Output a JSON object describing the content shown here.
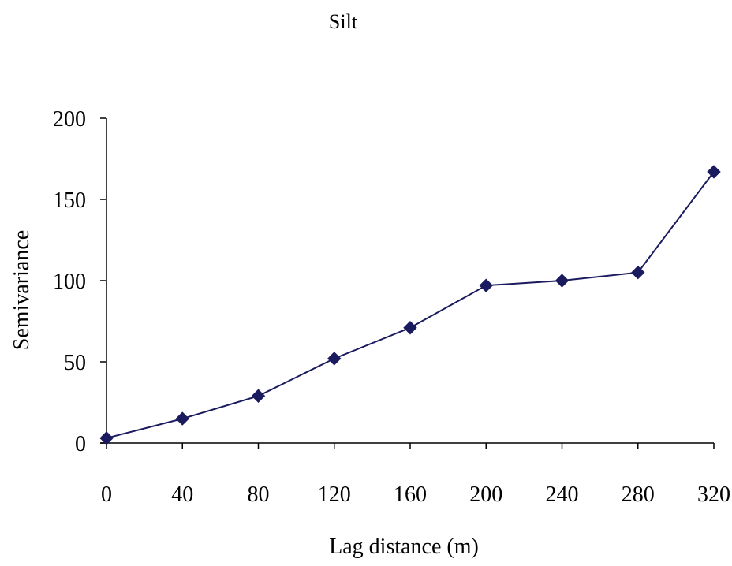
{
  "chart_data": {
    "type": "line",
    "title": "Silt",
    "xlabel": "Lag distance (m)",
    "ylabel": "Semivariance",
    "x": [
      0,
      40,
      80,
      120,
      160,
      200,
      240,
      280,
      320
    ],
    "y": [
      3,
      15,
      29,
      52,
      71,
      97,
      100,
      105,
      167
    ],
    "xlim": [
      0,
      320
    ],
    "ylim": [
      0,
      200
    ],
    "xticks": [
      0,
      40,
      80,
      120,
      160,
      200,
      240,
      280,
      320
    ],
    "yticks": [
      0,
      50,
      100,
      150,
      200
    ],
    "grid": false,
    "legend": "none",
    "series_color": "#1a1a5e",
    "marker": "diamond"
  }
}
